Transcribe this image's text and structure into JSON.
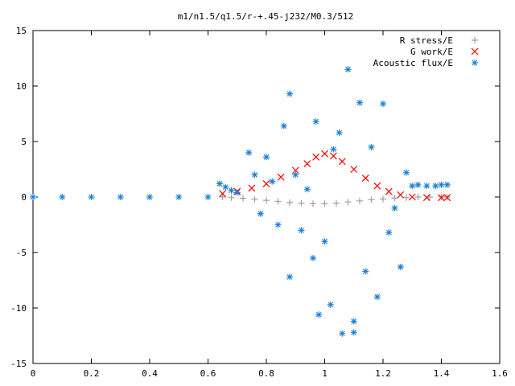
{
  "chart_data": {
    "type": "scatter",
    "title": "m1/n1.5/q1.5/r-+.45-j232/M0.3/512",
    "xlabel": "",
    "ylabel": "",
    "xlim": [
      0,
      1.6
    ],
    "ylim": [
      -15,
      15
    ],
    "x_ticks": [
      "0",
      "0.2",
      "0.4",
      "0.6",
      "0.8",
      "1",
      "1.2",
      "1.4",
      "1.6"
    ],
    "y_ticks": [
      "-15",
      "-10",
      "-5",
      "0",
      "5",
      "10",
      "15"
    ],
    "grid": false,
    "legend_position": "top-right",
    "series": [
      {
        "name": "R stress/E",
        "marker": "+",
        "color": "#a0a0a0",
        "points": [
          [
            0.65,
            0.0
          ],
          [
            0.68,
            -0.05
          ],
          [
            0.72,
            -0.12
          ],
          [
            0.76,
            -0.2
          ],
          [
            0.8,
            -0.3
          ],
          [
            0.84,
            -0.4
          ],
          [
            0.88,
            -0.5
          ],
          [
            0.92,
            -0.55
          ],
          [
            0.96,
            -0.6
          ],
          [
            1.0,
            -0.6
          ],
          [
            1.04,
            -0.55
          ],
          [
            1.08,
            -0.45
          ],
          [
            1.12,
            -0.35
          ],
          [
            1.16,
            -0.25
          ],
          [
            1.2,
            -0.18
          ],
          [
            1.24,
            -0.1
          ],
          [
            1.28,
            -0.05
          ],
          [
            1.32,
            0.0
          ],
          [
            1.36,
            0.0
          ],
          [
            1.4,
            0.0
          ],
          [
            1.42,
            0.0
          ]
        ]
      },
      {
        "name": "G work/E",
        "marker": "x",
        "color": "#ff0000",
        "points": [
          [
            0.65,
            0.3
          ],
          [
            0.7,
            0.5
          ],
          [
            0.75,
            0.8
          ],
          [
            0.8,
            1.2
          ],
          [
            0.85,
            1.8
          ],
          [
            0.9,
            2.4
          ],
          [
            0.94,
            3.0
          ],
          [
            0.97,
            3.6
          ],
          [
            1.0,
            3.9
          ],
          [
            1.03,
            3.7
          ],
          [
            1.06,
            3.2
          ],
          [
            1.1,
            2.5
          ],
          [
            1.14,
            1.7
          ],
          [
            1.18,
            1.0
          ],
          [
            1.22,
            0.5
          ],
          [
            1.26,
            0.2
          ],
          [
            1.3,
            0.0
          ],
          [
            1.35,
            -0.05
          ],
          [
            1.4,
            -0.05
          ],
          [
            1.42,
            -0.05
          ]
        ]
      },
      {
        "name": "Acoustic flux/E",
        "marker": "*",
        "color": "#1a7fd8",
        "points": [
          [
            0.0,
            0.0
          ],
          [
            0.1,
            0.0
          ],
          [
            0.2,
            0.0
          ],
          [
            0.3,
            0.0
          ],
          [
            0.4,
            0.0
          ],
          [
            0.5,
            0.0
          ],
          [
            0.6,
            0.0
          ],
          [
            0.64,
            1.2
          ],
          [
            0.66,
            0.9
          ],
          [
            0.68,
            0.6
          ],
          [
            0.7,
            0.4
          ],
          [
            0.74,
            4.0
          ],
          [
            0.76,
            2.0
          ],
          [
            0.78,
            -1.5
          ],
          [
            0.8,
            3.6
          ],
          [
            0.82,
            1.4
          ],
          [
            0.84,
            -2.5
          ],
          [
            0.86,
            6.4
          ],
          [
            0.88,
            9.3
          ],
          [
            0.88,
            -7.2
          ],
          [
            0.9,
            2.0
          ],
          [
            0.92,
            -3.0
          ],
          [
            0.94,
            0.7
          ],
          [
            0.96,
            -5.5
          ],
          [
            0.97,
            6.8
          ],
          [
            0.98,
            -10.6
          ],
          [
            1.0,
            -4.0
          ],
          [
            1.02,
            -9.7
          ],
          [
            1.03,
            4.3
          ],
          [
            1.05,
            5.8
          ],
          [
            1.06,
            -12.3
          ],
          [
            1.08,
            11.5
          ],
          [
            1.1,
            -11.2
          ],
          [
            1.1,
            -12.2
          ],
          [
            1.12,
            8.5
          ],
          [
            1.14,
            -6.7
          ],
          [
            1.16,
            4.5
          ],
          [
            1.18,
            -9.0
          ],
          [
            1.2,
            8.4
          ],
          [
            1.22,
            -3.2
          ],
          [
            1.24,
            -1.0
          ],
          [
            1.26,
            -6.3
          ],
          [
            1.28,
            2.2
          ],
          [
            1.3,
            1.0
          ],
          [
            1.32,
            1.1
          ],
          [
            1.35,
            1.0
          ],
          [
            1.38,
            1.0
          ],
          [
            1.4,
            1.1
          ],
          [
            1.42,
            1.1
          ]
        ]
      }
    ]
  }
}
